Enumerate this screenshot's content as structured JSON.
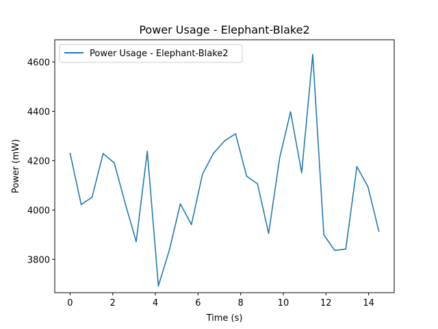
{
  "chart_data": {
    "type": "line",
    "title": "Power Usage - Elephant-Blake2",
    "xlabel": "Time (s)",
    "ylabel": "Power (mW)",
    "xlim": [
      -0.72,
      15.2
    ],
    "ylim": [
      3665,
      4690
    ],
    "xticks": [
      0,
      2,
      4,
      6,
      8,
      10,
      12,
      14
    ],
    "yticks": [
      3800,
      4000,
      4200,
      4400,
      4600
    ],
    "grid": false,
    "legend_position": "top-left",
    "series": [
      {
        "name": "Power Usage - Elephant-Blake2",
        "color": "#1f77b4",
        "x": [
          0.0,
          0.52,
          1.03,
          1.55,
          2.07,
          2.59,
          3.1,
          3.62,
          4.14,
          4.66,
          5.17,
          5.69,
          6.21,
          6.72,
          7.24,
          7.76,
          8.28,
          8.79,
          9.31,
          9.83,
          10.34,
          10.86,
          11.38,
          11.9,
          12.41,
          12.93,
          13.45,
          13.97,
          14.48
        ],
        "y": [
          4230,
          4022,
          4052,
          4229,
          4191,
          4025,
          3872,
          4238,
          3692,
          3839,
          4025,
          3941,
          4146,
          4229,
          4280,
          4309,
          4137,
          4106,
          3905,
          4212,
          4398,
          4151,
          4630,
          3899,
          3836,
          3842,
          4176,
          4094,
          3914
        ]
      }
    ]
  }
}
